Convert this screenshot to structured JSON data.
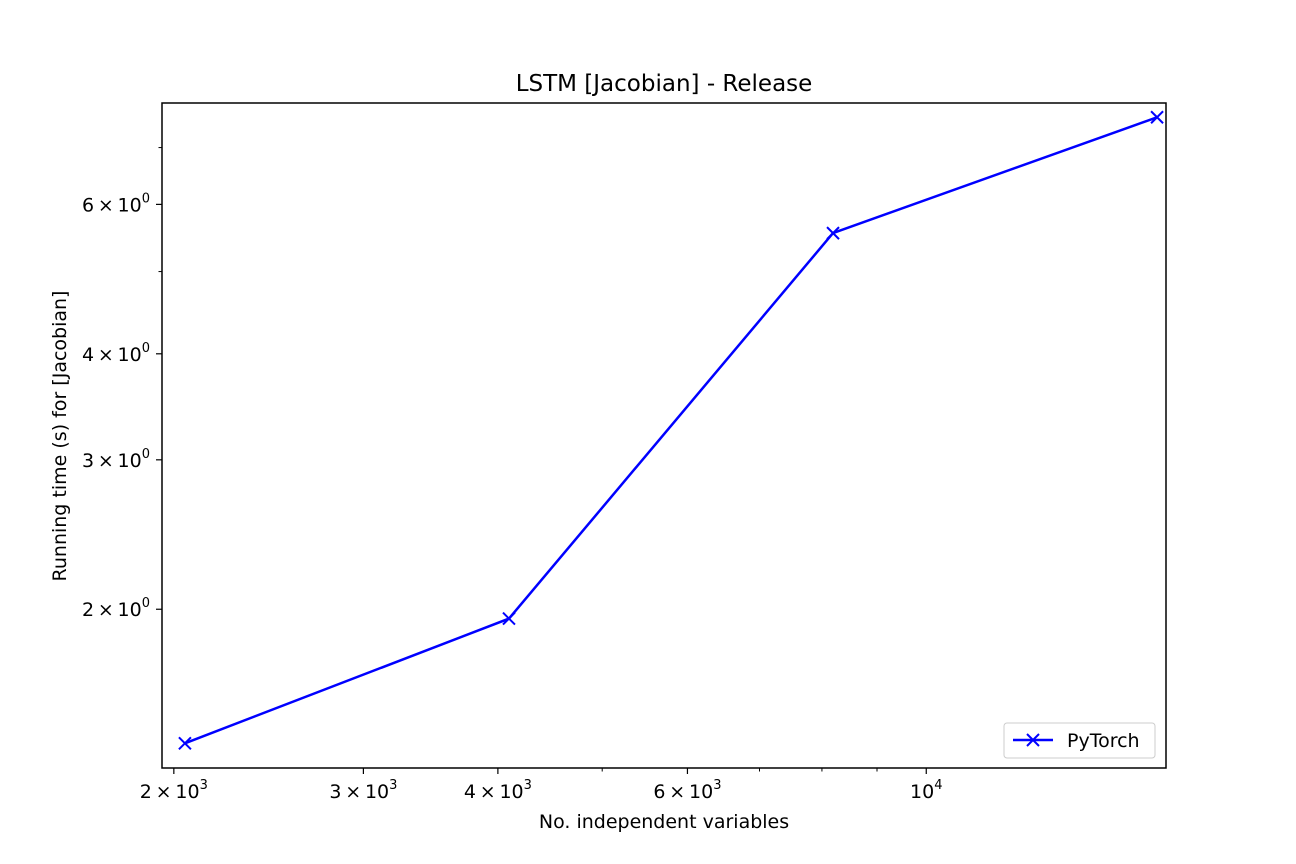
{
  "chart_data": {
    "type": "line",
    "title": "LSTM [Jacobian] - Release",
    "xlabel": "No. independent variables",
    "ylabel": "Running time (s) for [Jacobian]",
    "xscale": "log",
    "yscale": "log",
    "xlim": [
      1950,
      16700
    ],
    "ylim": [
      1.3,
      7.9
    ],
    "x_ticks": [
      {
        "value": 2000,
        "mant": "2",
        "base": "10",
        "exp": "3"
      },
      {
        "value": 3000,
        "mant": "3",
        "base": "10",
        "exp": "3"
      },
      {
        "value": 4000,
        "mant": "4",
        "base": "10",
        "exp": "3"
      },
      {
        "value": 6000,
        "mant": "6",
        "base": "10",
        "exp": "3"
      },
      {
        "value": 10000,
        "mant": "",
        "base": "10",
        "exp": "4"
      }
    ],
    "y_ticks": [
      {
        "value": 2,
        "mant": "2",
        "base": "10",
        "exp": "0"
      },
      {
        "value": 3,
        "mant": "3",
        "base": "10",
        "exp": "0"
      },
      {
        "value": 4,
        "mant": "4",
        "base": "10",
        "exp": "0"
      },
      {
        "value": 6,
        "mant": "6",
        "base": "10",
        "exp": "0"
      }
    ],
    "x_minor_ticks": [
      5000,
      7000,
      8000,
      9000
    ],
    "y_minor_ticks": [
      5,
      7,
      8,
      9
    ],
    "grid": false,
    "legend_position": "bottom-right",
    "series": [
      {
        "name": "PyTorch",
        "color": "#0000ff",
        "marker": "x",
        "x": [
          2048,
          4096,
          8192,
          16384
        ],
        "y": [
          1.39,
          1.95,
          5.55,
          7.6
        ]
      }
    ]
  }
}
